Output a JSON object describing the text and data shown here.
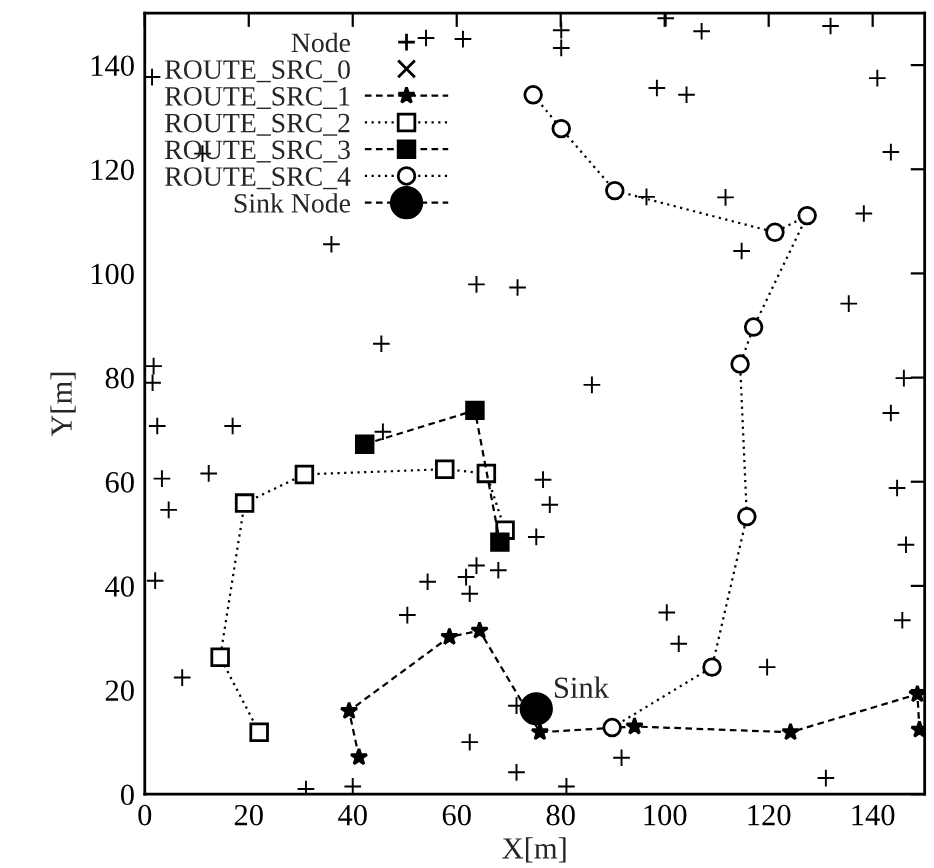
{
  "chart_data": {
    "type": "scatter",
    "xlabel": "X[m]",
    "ylabel": "Y[m]",
    "xlim": [
      0,
      150
    ],
    "ylim": [
      0,
      150
    ],
    "xticks": [
      0,
      20,
      40,
      60,
      80,
      100,
      120,
      140
    ],
    "yticks": [
      0,
      20,
      40,
      60,
      80,
      100,
      120,
      140
    ],
    "grid": false,
    "legend": "top left",
    "annotations": [
      {
        "text": "Sink",
        "x": 75.3,
        "y": 16.4
      }
    ],
    "series": [
      {
        "name": "Node",
        "color": "#000000",
        "marker": "cross",
        "x": [
          1.4,
          11.1,
          35.9,
          63.8,
          71.7,
          45.5,
          1.7,
          1.5,
          54.1,
          61.2,
          80.1,
          80.1,
          100.2,
          107.1,
          131.9,
          98.5,
          104.2,
          140.9,
          143.5,
          96.5,
          111.7,
          138.3,
          114.8,
          135.4,
          86.0,
          146.0,
          143.5,
          2.4,
          16.9,
          45.8,
          3.3,
          12.3,
          4.6,
          76.6,
          75.3,
          63.8,
          68.0,
          54.4,
          61.8,
          62.5,
          50.5,
          2.0,
          7.2,
          71.5,
          62.5,
          71.5,
          31.0,
          40.0,
          144.7,
          146.4,
          145.7,
          77.9,
          100.4,
          102.7,
          119.7,
          91.7,
          81.1,
          131.0
        ],
        "values": [
          137.7,
          123.0,
          105.6,
          97.9,
          97.3,
          86.5,
          82.2,
          79.0,
          145.2,
          145.0,
          146.7,
          143.3,
          149.0,
          146.5,
          147.5,
          135.6,
          134.3,
          137.5,
          123.3,
          114.7,
          114.6,
          111.5,
          104.3,
          94.2,
          78.6,
          79.9,
          73.2,
          70.7,
          70.7,
          69.6,
          60.6,
          61.6,
          54.6,
          60.4,
          49.4,
          43.9,
          43.0,
          40.8,
          41.7,
          38.5,
          34.4,
          41.0,
          22.4,
          17.0,
          10.0,
          4.2,
          1.0,
          1.5,
          58.8,
          47.9,
          33.4,
          55.6,
          34.9,
          28.9,
          24.4,
          7.0,
          1.5,
          3.1
        ]
      },
      {
        "name": "ROUTE_SRC_0",
        "type": "scatter",
        "color": "#000000",
        "marker": "x"
      },
      {
        "name": "ROUTE_SRC_1",
        "type": "line",
        "color": "#000000",
        "marker": "star",
        "line_style": "dashed",
        "x": [
          41.2,
          39.3,
          58.6,
          64.4,
          76.0,
          94.2,
          124.2,
          148.6,
          149.0
        ],
        "values": [
          7.1,
          16.0,
          30.2,
          31.4,
          11.9,
          13.0,
          11.9,
          19.2,
          12.4
        ]
      },
      {
        "name": "ROUTE_SRC_2",
        "type": "line",
        "color": "#000000",
        "marker": "square",
        "line_style": "dotted",
        "x": [
          22.0,
          14.5,
          19.2,
          30.7,
          57.7,
          65.7,
          69.3
        ],
        "values": [
          11.9,
          26.3,
          55.9,
          61.4,
          62.4,
          61.6,
          50.7
        ]
      },
      {
        "name": "ROUTE_SRC_3",
        "type": "line",
        "color": "#000000",
        "marker": "square",
        "line_style": "dashed",
        "x": [
          42.3,
          63.5,
          68.3
        ],
        "values": [
          67.2,
          73.7,
          48.4
        ]
      },
      {
        "name": "ROUTE_SRC_4",
        "type": "line",
        "color": "#000000",
        "marker": "circle",
        "line_style": "dotted",
        "x": [
          74.7,
          80.1,
          90.4,
          121.2,
          127.4,
          117.1,
          114.5,
          115.8,
          109.1,
          89.9
        ],
        "values": [
          134.3,
          127.8,
          115.9,
          107.9,
          111.1,
          89.7,
          82.6,
          53.3,
          24.4,
          12.8
        ]
      },
      {
        "name": "Sink Node",
        "type": "line",
        "color": "#000000",
        "marker": "circle",
        "line_style": "dashed",
        "x": [
          75.3
        ],
        "values": [
          16.4
        ]
      }
    ]
  }
}
